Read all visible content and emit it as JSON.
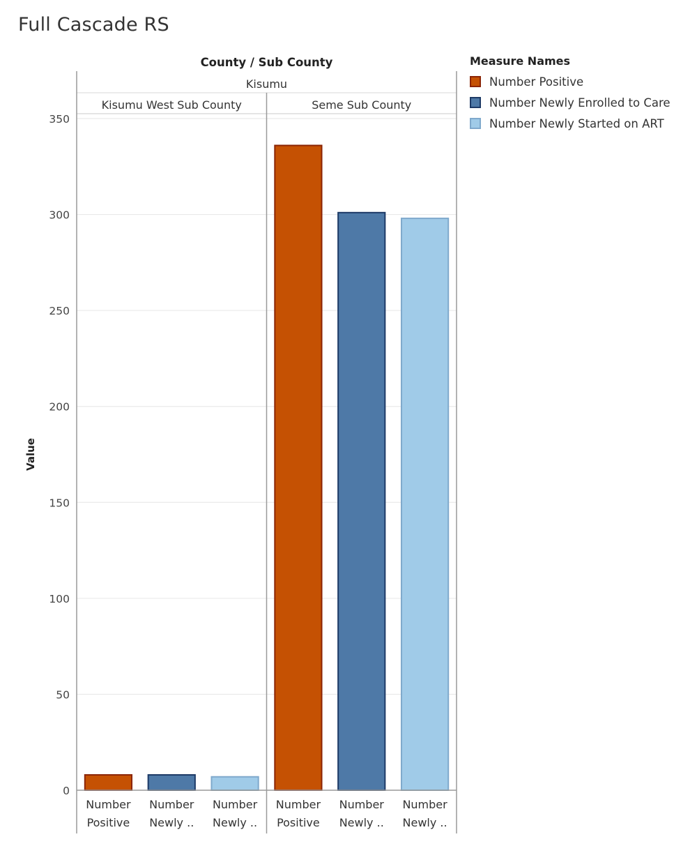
{
  "title": "Full Cascade RS",
  "colors": {
    "number_positive": "#C55103",
    "number_positive_border": "#8B2505",
    "number_enrolled": "#4E79A7",
    "number_enrolled_border": "#1D3A66",
    "number_art": "#A0CBE8",
    "number_art_border": "#7FA9CC"
  },
  "legend": {
    "title": "Measure Names",
    "items": [
      {
        "label": "Number Positive",
        "color": "#C55103",
        "border": "#8B2505"
      },
      {
        "label": "Number Newly Enrolled to Care",
        "color": "#4E79A7",
        "border": "#1D3A66"
      },
      {
        "label": "Number Newly Started on ART",
        "color": "#A0CBE8",
        "border": "#7FA9CC"
      }
    ]
  },
  "chart_data": {
    "type": "bar",
    "title": "Full Cascade RS",
    "column_header": "County / Sub County",
    "county": "Kisumu",
    "ylabel": "Value",
    "ylim": [
      0,
      350
    ],
    "yticks": [
      0,
      50,
      100,
      150,
      200,
      250,
      300,
      350
    ],
    "grid": true,
    "legend_position": "top-right",
    "panels": [
      {
        "name": "Kisumu West Sub County",
        "bars": [
          {
            "category": [
              "Number",
              "Positive"
            ],
            "measure": "Number Positive",
            "value": 8
          },
          {
            "category": [
              "Number",
              "Newly .."
            ],
            "measure": "Number Newly Enrolled to Care",
            "value": 8
          },
          {
            "category": [
              "Number",
              "Newly .."
            ],
            "measure": "Number Newly Started on ART",
            "value": 7
          }
        ]
      },
      {
        "name": "Seme Sub County",
        "bars": [
          {
            "category": [
              "Number",
              "Positive"
            ],
            "measure": "Number Positive",
            "value": 336
          },
          {
            "category": [
              "Number",
              "Newly .."
            ],
            "measure": "Number Newly Enrolled to Care",
            "value": 301
          },
          {
            "category": [
              "Number",
              "Newly .."
            ],
            "measure": "Number Newly Started on ART",
            "value": 298
          }
        ]
      }
    ]
  }
}
